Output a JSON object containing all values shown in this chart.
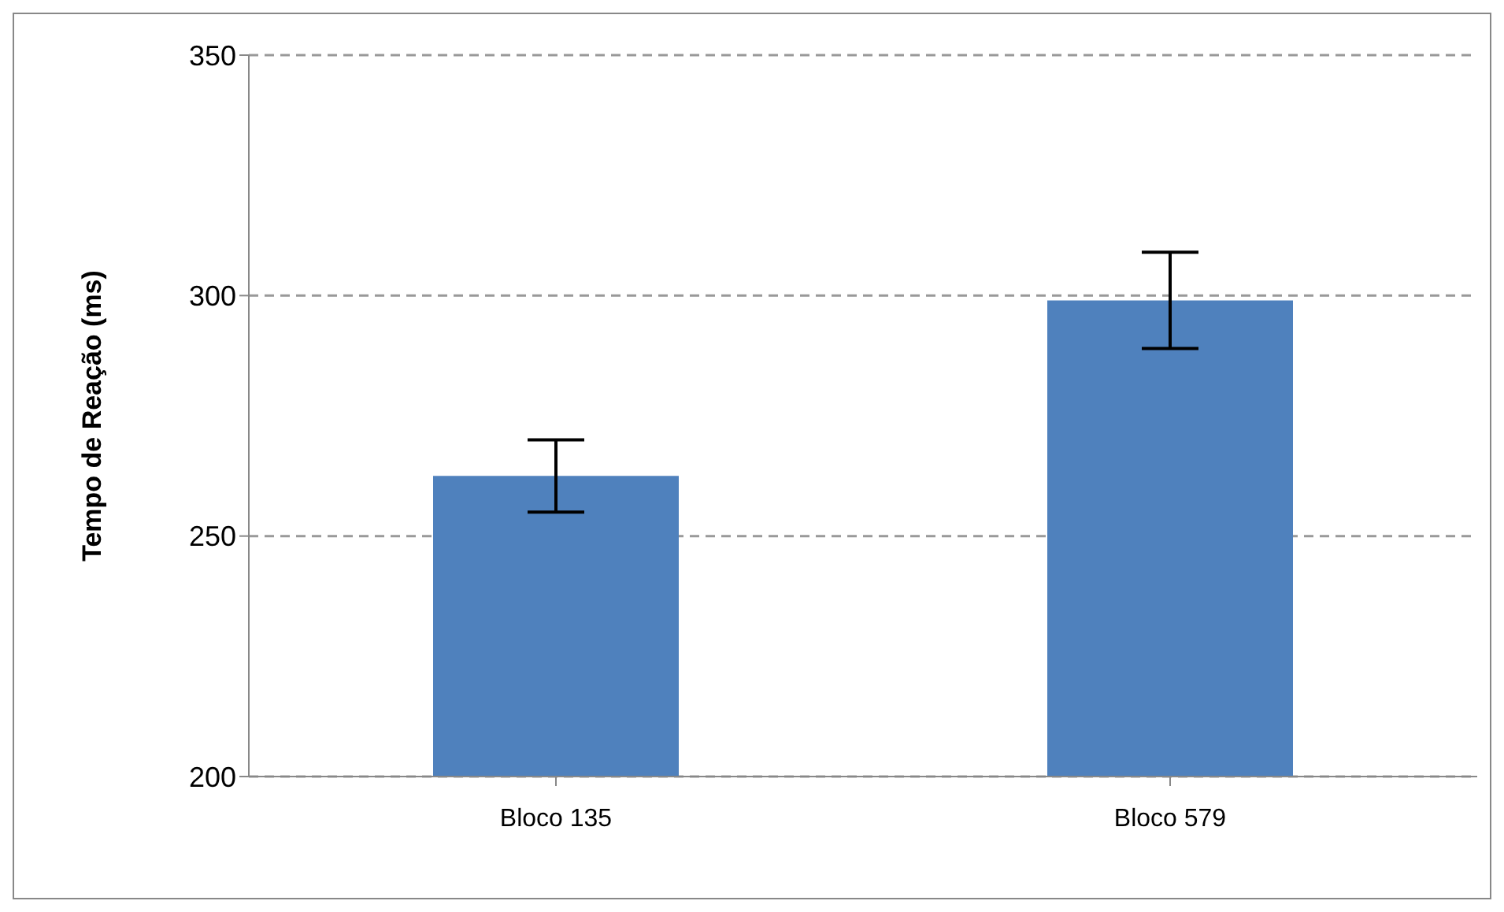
{
  "chart_data": {
    "type": "bar",
    "ylabel": "Tempo de Reação (ms)",
    "categories": [
      "Bloco 135",
      "Bloco 579"
    ],
    "values": [
      262.5,
      299
    ],
    "errors": [
      7.5,
      10
    ],
    "color": "#4f81bd",
    "ylim": [
      200,
      350
    ],
    "yticks": [
      200,
      250,
      300,
      350
    ],
    "grid": "y"
  }
}
